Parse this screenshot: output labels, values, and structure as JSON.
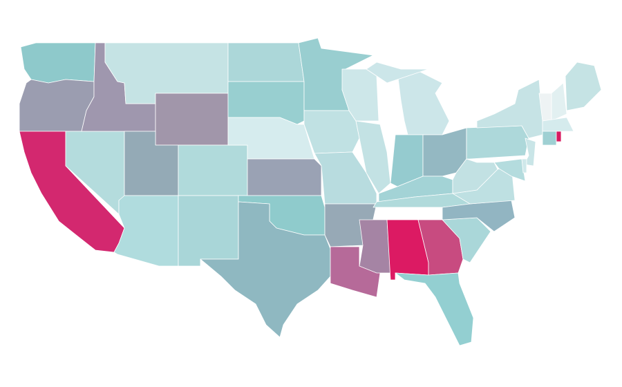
{
  "map": {
    "background": "#ffffff",
    "border_color": "#ffffff",
    "regions": [
      {
        "color": "#8ec9cb"
      },
      {
        "color": "#9b9db0"
      },
      {
        "color": "#d3286f"
      },
      {
        "color": "#b4dcdd"
      },
      {
        "color": "#9f97ae"
      },
      {
        "color": "#c5e3e4"
      },
      {
        "color": "#a196aa"
      },
      {
        "color": "#94aab6"
      },
      {
        "color": "#b0dadb"
      },
      {
        "color": "#b0dcde"
      },
      {
        "color": "#a9d6d8"
      },
      {
        "color": "#acd7d9"
      },
      {
        "color": "#98cfd0"
      },
      {
        "color": "#d6ecee"
      },
      {
        "color": "#9aa2b4"
      },
      {
        "color": "#8fcbcc"
      },
      {
        "color": "#8fb8c1"
      },
      {
        "color": "#99ced0"
      },
      {
        "color": "#c0e1e3"
      },
      {
        "color": "#b8dcdf"
      },
      {
        "color": "#97a9b6"
      },
      {
        "color": "#b66a99"
      },
      {
        "color": "#cde7e9"
      },
      {
        "color": "#c3e2e4"
      },
      {
        "color": "#cce6e9"
      },
      {
        "color": "#95cbcf"
      },
      {
        "color": "#94b8c2"
      },
      {
        "color": "#a3d3d6"
      },
      {
        "color": "#b0dadb"
      },
      {
        "color": "#a584a4"
      },
      {
        "color": "#dc1a63"
      },
      {
        "color": "#c84b80"
      },
      {
        "color": "#93cfd1"
      },
      {
        "color": "#aad7d9"
      },
      {
        "color": "#92b5c2"
      },
      {
        "color": "#bee0e2"
      },
      {
        "color": "#c2e1e3"
      },
      {
        "color": "#add8da"
      },
      {
        "color": "#c6e3e5"
      },
      {
        "color": "#c5e3e4"
      },
      {
        "color": "#eef3f4"
      },
      {
        "color": "#e2f0f1"
      },
      {
        "color": "#d5ebed"
      },
      {
        "color": "#9fd0d3"
      },
      {
        "color": "#d81b60"
      },
      {
        "color": "#c9e5e7"
      },
      {
        "color": "#b4dcde"
      },
      {
        "color": "#cfe8ea"
      }
    ]
  }
}
